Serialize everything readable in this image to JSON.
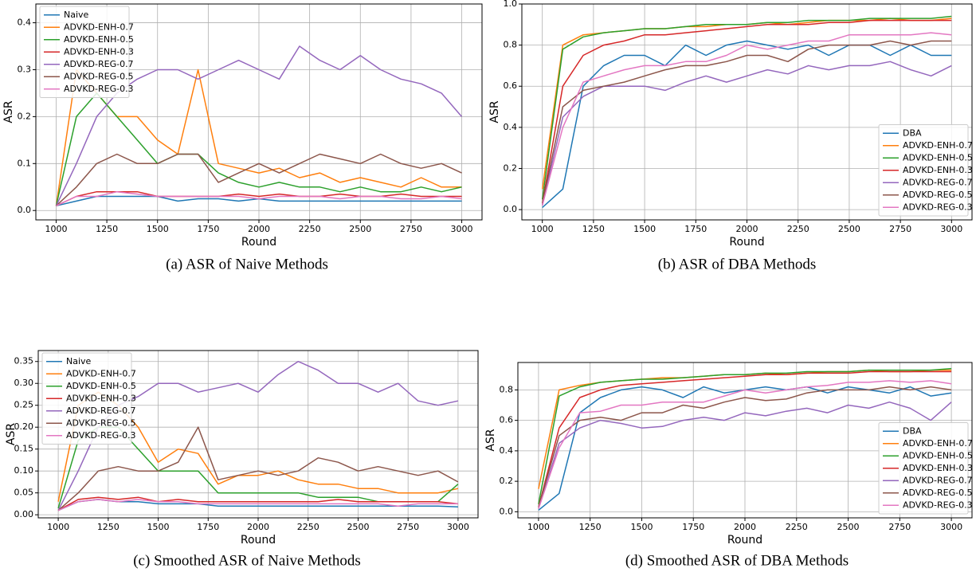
{
  "chart_data": [
    {
      "type": "line",
      "caption": "(a) ASR of Naive Methods",
      "xlabel": "Round",
      "ylabel": "ASR",
      "grid": true,
      "legend": "upper left",
      "xlim": [
        900,
        3100
      ],
      "ylim": [
        -0.02,
        0.44
      ],
      "xticks": [
        1000,
        1250,
        1500,
        1750,
        2000,
        2250,
        2500,
        2750,
        3000
      ],
      "yticks": [
        {
          "value": 0,
          "label": "0.0"
        },
        0.1,
        0.2,
        0.3,
        0.4
      ],
      "x": [
        1000,
        1100,
        1200,
        1300,
        1400,
        1500,
        1600,
        1700,
        1800,
        1900,
        2000,
        2100,
        2200,
        2300,
        2400,
        2500,
        2600,
        2700,
        2800,
        2900,
        3000
      ],
      "series": [
        {
          "name": "Naive",
          "color": "#1f77b4",
          "values": [
            0.01,
            0.02,
            0.03,
            0.03,
            0.03,
            0.03,
            0.02,
            0.025,
            0.025,
            0.02,
            0.025,
            0.02,
            0.02,
            0.02,
            0.02,
            0.02,
            0.02,
            0.02,
            0.02,
            0.02,
            0.02
          ]
        },
        {
          "name": "ADVKD-ENH-0.7",
          "color": "#ff7f0e",
          "values": [
            0.01,
            0.3,
            0.25,
            0.2,
            0.2,
            0.15,
            0.12,
            0.3,
            0.1,
            0.09,
            0.08,
            0.09,
            0.07,
            0.08,
            0.06,
            0.07,
            0.06,
            0.05,
            0.07,
            0.05,
            0.05
          ]
        },
        {
          "name": "ADVKD-ENH-0.5",
          "color": "#2ca02c",
          "values": [
            0.01,
            0.2,
            0.25,
            0.2,
            0.15,
            0.1,
            0.12,
            0.12,
            0.08,
            0.06,
            0.05,
            0.06,
            0.05,
            0.05,
            0.04,
            0.05,
            0.04,
            0.04,
            0.05,
            0.04,
            0.05
          ]
        },
        {
          "name": "ADVKD-ENH-0.3",
          "color": "#d62728",
          "values": [
            0.01,
            0.03,
            0.04,
            0.04,
            0.04,
            0.03,
            0.03,
            0.03,
            0.03,
            0.035,
            0.03,
            0.035,
            0.03,
            0.03,
            0.035,
            0.03,
            0.03,
            0.035,
            0.03,
            0.03,
            0.03
          ]
        },
        {
          "name": "ADVKD-REG-0.7",
          "color": "#9467bd",
          "values": [
            0.01,
            0.1,
            0.2,
            0.25,
            0.28,
            0.3,
            0.3,
            0.28,
            0.3,
            0.32,
            0.3,
            0.28,
            0.35,
            0.32,
            0.3,
            0.33,
            0.3,
            0.28,
            0.27,
            0.25,
            0.2
          ]
        },
        {
          "name": "ADVKD-REG-0.5",
          "color": "#8c564b",
          "values": [
            0.01,
            0.05,
            0.1,
            0.12,
            0.1,
            0.1,
            0.12,
            0.12,
            0.06,
            0.08,
            0.1,
            0.08,
            0.1,
            0.12,
            0.11,
            0.1,
            0.12,
            0.1,
            0.09,
            0.1,
            0.08
          ]
        },
        {
          "name": "ADVKD-REG-0.3",
          "color": "#e377c2",
          "values": [
            0.01,
            0.03,
            0.03,
            0.04,
            0.035,
            0.03,
            0.03,
            0.03,
            0.03,
            0.03,
            0.025,
            0.03,
            0.03,
            0.03,
            0.025,
            0.03,
            0.03,
            0.025,
            0.025,
            0.03,
            0.025
          ]
        }
      ]
    },
    {
      "type": "line",
      "caption": "(b) ASR of DBA Methods",
      "xlabel": "Round",
      "ylabel": "ASR",
      "grid": true,
      "legend": "lower right",
      "xlim": [
        900,
        3100
      ],
      "ylim": [
        -0.05,
        1.0
      ],
      "xticks": [
        1000,
        1250,
        1500,
        1750,
        2000,
        2250,
        2500,
        2750,
        3000
      ],
      "yticks": [
        {
          "value": 0,
          "label": "0.0"
        },
        0.2,
        0.4,
        0.6,
        0.8,
        {
          "value": 1,
          "label": "1.0"
        }
      ],
      "x": [
        1000,
        1100,
        1200,
        1300,
        1400,
        1500,
        1600,
        1700,
        1800,
        1900,
        2000,
        2100,
        2200,
        2300,
        2400,
        2500,
        2600,
        2700,
        2800,
        2900,
        3000
      ],
      "series": [
        {
          "name": "DBA",
          "color": "#1f77b4",
          "values": [
            0.01,
            0.1,
            0.6,
            0.7,
            0.75,
            0.75,
            0.7,
            0.8,
            0.75,
            0.8,
            0.82,
            0.8,
            0.78,
            0.8,
            0.75,
            0.8,
            0.8,
            0.75,
            0.8,
            0.75,
            0.75
          ]
        },
        {
          "name": "ADVKD-ENH-0.7",
          "color": "#ff7f0e",
          "values": [
            0.1,
            0.8,
            0.85,
            0.86,
            0.87,
            0.88,
            0.88,
            0.89,
            0.89,
            0.9,
            0.9,
            0.91,
            0.9,
            0.91,
            0.92,
            0.92,
            0.92,
            0.93,
            0.92,
            0.92,
            0.93
          ]
        },
        {
          "name": "ADVKD-ENH-0.5",
          "color": "#2ca02c",
          "values": [
            0.05,
            0.78,
            0.84,
            0.86,
            0.87,
            0.88,
            0.88,
            0.89,
            0.9,
            0.9,
            0.9,
            0.91,
            0.91,
            0.92,
            0.92,
            0.92,
            0.93,
            0.93,
            0.93,
            0.93,
            0.94
          ]
        },
        {
          "name": "ADVKD-ENH-0.3",
          "color": "#d62728",
          "values": [
            0.03,
            0.6,
            0.75,
            0.8,
            0.82,
            0.85,
            0.85,
            0.86,
            0.87,
            0.88,
            0.89,
            0.9,
            0.9,
            0.9,
            0.91,
            0.91,
            0.92,
            0.92,
            0.92,
            0.92,
            0.92
          ]
        },
        {
          "name": "ADVKD-REG-0.7",
          "color": "#9467bd",
          "values": [
            0.02,
            0.45,
            0.55,
            0.6,
            0.6,
            0.6,
            0.58,
            0.62,
            0.65,
            0.62,
            0.65,
            0.68,
            0.66,
            0.7,
            0.68,
            0.7,
            0.7,
            0.72,
            0.68,
            0.65,
            0.7
          ]
        },
        {
          "name": "ADVKD-REG-0.5",
          "color": "#8c564b",
          "values": [
            0.03,
            0.5,
            0.58,
            0.6,
            0.62,
            0.65,
            0.68,
            0.7,
            0.7,
            0.72,
            0.75,
            0.75,
            0.72,
            0.78,
            0.8,
            0.8,
            0.8,
            0.82,
            0.8,
            0.82,
            0.82
          ]
        },
        {
          "name": "ADVKD-REG-0.3",
          "color": "#e377c2",
          "values": [
            0.02,
            0.4,
            0.62,
            0.65,
            0.68,
            0.7,
            0.7,
            0.72,
            0.72,
            0.75,
            0.8,
            0.78,
            0.8,
            0.82,
            0.82,
            0.85,
            0.85,
            0.85,
            0.85,
            0.86,
            0.85
          ]
        }
      ]
    },
    {
      "type": "line",
      "caption": "(c) Smoothed ASR of Naive Methods",
      "xlabel": "Round",
      "ylabel": "ASR",
      "grid": true,
      "legend": "upper left",
      "xlim": [
        900,
        3100
      ],
      "ylim": [
        -0.007,
        0.375
      ],
      "xticks": [
        1000,
        1250,
        1500,
        1750,
        2000,
        2250,
        2500,
        2750,
        3000
      ],
      "yticks": [
        {
          "value": 0,
          "label": "0.00"
        },
        0.05,
        {
          "value": 0.1,
          "label": "0.10"
        },
        0.15,
        {
          "value": 0.2,
          "label": "0.20"
        },
        0.25,
        {
          "value": 0.3,
          "label": "0.30"
        },
        0.35
      ],
      "x": [
        1000,
        1100,
        1200,
        1300,
        1400,
        1500,
        1600,
        1700,
        1800,
        1900,
        2000,
        2100,
        2200,
        2300,
        2400,
        2500,
        2600,
        2700,
        2800,
        2900,
        3000
      ],
      "series": [
        {
          "name": "Naive",
          "color": "#1f77b4",
          "values": [
            0.01,
            0.03,
            0.035,
            0.03,
            0.03,
            0.025,
            0.025,
            0.025,
            0.02,
            0.02,
            0.02,
            0.02,
            0.02,
            0.02,
            0.02,
            0.02,
            0.02,
            0.02,
            0.02,
            0.02,
            0.018
          ]
        },
        {
          "name": "ADVKD-ENH-0.7",
          "color": "#ff7f0e",
          "values": [
            0.03,
            0.25,
            0.28,
            0.25,
            0.2,
            0.12,
            0.15,
            0.14,
            0.07,
            0.09,
            0.09,
            0.1,
            0.08,
            0.07,
            0.07,
            0.06,
            0.06,
            0.05,
            0.05,
            0.05,
            0.06
          ]
        },
        {
          "name": "ADVKD-ENH-0.5",
          "color": "#2ca02c",
          "values": [
            0.015,
            0.17,
            0.2,
            0.2,
            0.15,
            0.1,
            0.1,
            0.1,
            0.05,
            0.05,
            0.05,
            0.05,
            0.05,
            0.04,
            0.04,
            0.04,
            0.03,
            0.03,
            0.03,
            0.03,
            0.07
          ]
        },
        {
          "name": "ADVKD-ENH-0.3",
          "color": "#d62728",
          "values": [
            0.01,
            0.035,
            0.04,
            0.035,
            0.04,
            0.03,
            0.035,
            0.03,
            0.03,
            0.03,
            0.03,
            0.03,
            0.03,
            0.03,
            0.035,
            0.03,
            0.03,
            0.03,
            0.03,
            0.03,
            0.025
          ]
        },
        {
          "name": "ADVKD-REG-0.7",
          "color": "#9467bd",
          "values": [
            0.01,
            0.1,
            0.2,
            0.25,
            0.27,
            0.3,
            0.3,
            0.28,
            0.29,
            0.3,
            0.28,
            0.32,
            0.35,
            0.33,
            0.3,
            0.3,
            0.28,
            0.3,
            0.26,
            0.25,
            0.26
          ]
        },
        {
          "name": "ADVKD-REG-0.5",
          "color": "#8c564b",
          "values": [
            0.01,
            0.05,
            0.1,
            0.11,
            0.1,
            0.1,
            0.12,
            0.2,
            0.08,
            0.09,
            0.1,
            0.09,
            0.1,
            0.13,
            0.12,
            0.1,
            0.11,
            0.1,
            0.09,
            0.1,
            0.075
          ]
        },
        {
          "name": "ADVKD-REG-0.3",
          "color": "#e377c2",
          "values": [
            0.01,
            0.03,
            0.035,
            0.03,
            0.035,
            0.03,
            0.03,
            0.025,
            0.025,
            0.025,
            0.025,
            0.025,
            0.025,
            0.025,
            0.025,
            0.025,
            0.025,
            0.02,
            0.025,
            0.025,
            0.025
          ]
        }
      ]
    },
    {
      "type": "line",
      "caption": "(d) Smoothed ASR of DBA Methods",
      "xlabel": "Round",
      "ylabel": "ASR",
      "grid": true,
      "legend": "lower right",
      "xlim": [
        900,
        3100
      ],
      "ylim": [
        -0.04,
        0.98
      ],
      "xticks": [
        1000,
        1250,
        1500,
        1750,
        2000,
        2250,
        2500,
        2750,
        3000
      ],
      "yticks": [
        {
          "value": 0,
          "label": "0.0"
        },
        0.2,
        0.4,
        0.6,
        0.8
      ],
      "x": [
        1000,
        1100,
        1200,
        1300,
        1400,
        1500,
        1600,
        1700,
        1800,
        1900,
        2000,
        2100,
        2200,
        2300,
        2400,
        2500,
        2600,
        2700,
        2800,
        2900,
        3000
      ],
      "series": [
        {
          "name": "DBA",
          "color": "#1f77b4",
          "values": [
            0.01,
            0.12,
            0.65,
            0.75,
            0.8,
            0.82,
            0.8,
            0.75,
            0.82,
            0.78,
            0.8,
            0.82,
            0.8,
            0.82,
            0.78,
            0.82,
            0.8,
            0.78,
            0.82,
            0.76,
            0.78
          ]
        },
        {
          "name": "ADVKD-ENH-0.7",
          "color": "#ff7f0e",
          "values": [
            0.15,
            0.8,
            0.83,
            0.85,
            0.86,
            0.87,
            0.88,
            0.88,
            0.89,
            0.9,
            0.9,
            0.91,
            0.9,
            0.91,
            0.92,
            0.92,
            0.93,
            0.92,
            0.92,
            0.93,
            0.93
          ]
        },
        {
          "name": "ADVKD-ENH-0.5",
          "color": "#2ca02c",
          "values": [
            0.05,
            0.76,
            0.82,
            0.85,
            0.86,
            0.87,
            0.87,
            0.88,
            0.89,
            0.9,
            0.9,
            0.91,
            0.91,
            0.92,
            0.92,
            0.92,
            0.93,
            0.93,
            0.93,
            0.93,
            0.94
          ]
        },
        {
          "name": "ADVKD-ENH-0.3",
          "color": "#d62728",
          "values": [
            0.03,
            0.55,
            0.75,
            0.8,
            0.83,
            0.84,
            0.85,
            0.86,
            0.87,
            0.88,
            0.89,
            0.9,
            0.9,
            0.91,
            0.91,
            0.91,
            0.92,
            0.92,
            0.92,
            0.92,
            0.92
          ]
        },
        {
          "name": "ADVKD-REG-0.7",
          "color": "#9467bd",
          "values": [
            0.02,
            0.45,
            0.55,
            0.6,
            0.58,
            0.55,
            0.56,
            0.6,
            0.62,
            0.6,
            0.65,
            0.63,
            0.66,
            0.68,
            0.65,
            0.7,
            0.68,
            0.72,
            0.68,
            0.6,
            0.72
          ]
        },
        {
          "name": "ADVKD-REG-0.5",
          "color": "#8c564b",
          "values": [
            0.03,
            0.5,
            0.6,
            0.62,
            0.6,
            0.65,
            0.65,
            0.7,
            0.68,
            0.72,
            0.75,
            0.73,
            0.74,
            0.78,
            0.8,
            0.8,
            0.8,
            0.82,
            0.8,
            0.82,
            0.8
          ]
        },
        {
          "name": "ADVKD-REG-0.3",
          "color": "#e377c2",
          "values": [
            0.02,
            0.42,
            0.65,
            0.66,
            0.7,
            0.7,
            0.72,
            0.72,
            0.72,
            0.76,
            0.8,
            0.78,
            0.8,
            0.82,
            0.83,
            0.85,
            0.85,
            0.86,
            0.85,
            0.86,
            0.84
          ]
        }
      ]
    }
  ]
}
